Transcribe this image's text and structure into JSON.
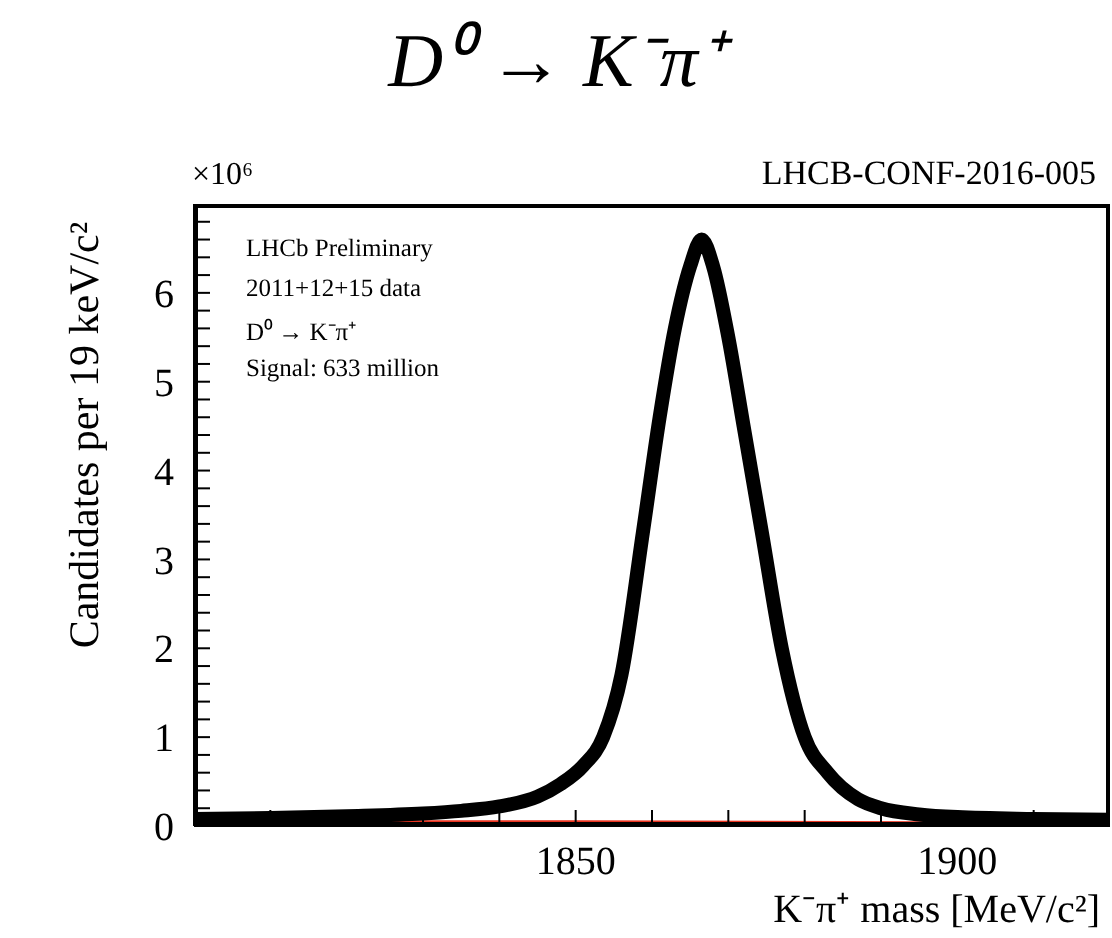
{
  "chart_data": {
    "type": "line",
    "title": "D⁰ → K⁻π⁺",
    "xlabel": "K⁻π⁺ mass [MeV/c²]",
    "ylabel": "Candidates per 19 keV/c²",
    "annotations": [
      "LHCB-CONF-2016-005",
      "×10⁶",
      "LHCb Preliminary",
      "2011+12+15 data",
      "D⁰ → K⁻π⁺",
      "Signal: 633 million"
    ],
    "xlim": [
      1800,
      1920
    ],
    "xticks": [
      {
        "value": 1810,
        "label": null
      },
      {
        "value": 1820,
        "label": null
      },
      {
        "value": 1830,
        "label": null
      },
      {
        "value": 1840,
        "label": null
      },
      1850,
      {
        "value": 1860,
        "label": null
      },
      {
        "value": 1870,
        "label": null
      },
      {
        "value": 1880,
        "label": null
      },
      {
        "value": 1890,
        "label": null
      },
      1900,
      {
        "value": 1910,
        "label": null
      }
    ],
    "ylim": [
      0,
      7
    ],
    "yticks": [
      0,
      {
        "value": 0.2,
        "label": null
      },
      {
        "value": 0.4,
        "label": null
      },
      {
        "value": 0.6,
        "label": null
      },
      {
        "value": 0.8,
        "label": null
      },
      1,
      {
        "value": 1.2,
        "label": null
      },
      {
        "value": 1.4,
        "label": null
      },
      {
        "value": 1.6,
        "label": null
      },
      {
        "value": 1.8,
        "label": null
      },
      2,
      {
        "value": 2.2,
        "label": null
      },
      {
        "value": 2.4,
        "label": null
      },
      {
        "value": 2.6,
        "label": null
      },
      {
        "value": 2.8,
        "label": null
      },
      3,
      {
        "value": 3.2,
        "label": null
      },
      {
        "value": 3.4,
        "label": null
      },
      {
        "value": 3.6,
        "label": null
      },
      {
        "value": 3.8,
        "label": null
      },
      4,
      {
        "value": 4.2,
        "label": null
      },
      {
        "value": 4.4,
        "label": null
      },
      {
        "value": 4.6,
        "label": null
      },
      {
        "value": 4.8,
        "label": null
      },
      5,
      {
        "value": 5.2,
        "label": null
      },
      {
        "value": 5.4,
        "label": null
      },
      {
        "value": 5.6,
        "label": null
      },
      {
        "value": 5.8,
        "label": null
      },
      6,
      {
        "value": 6.2,
        "label": null
      },
      {
        "value": 6.4,
        "label": null
      },
      {
        "value": 6.6,
        "label": null
      },
      {
        "value": 6.8,
        "label": null
      }
    ],
    "marker": "none",
    "line_style": "solid",
    "series": [
      {
        "color": "#e8321e",
        "x": [
          1800,
          1850,
          1896
        ],
        "values": [
          0.03,
          0.03,
          0.02
        ]
      },
      {
        "color": "#000000",
        "x": [
          1800,
          1810,
          1820,
          1830,
          1835,
          1840,
          1845,
          1848,
          1851,
          1853.6,
          1856,
          1858.8,
          1861,
          1863,
          1865,
          1866.5,
          1868,
          1870,
          1872,
          1874.4,
          1877,
          1880,
          1883,
          1887,
          1890,
          1895,
          1900,
          1910,
          1920
        ],
        "values": [
          0.08,
          0.09,
          0.11,
          0.14,
          0.17,
          0.22,
          0.33,
          0.47,
          0.68,
          1.0,
          1.7,
          3.3,
          4.6,
          5.6,
          6.3,
          6.6,
          6.3,
          5.5,
          4.5,
          3.3,
          2.0,
          1.0,
          0.6,
          0.3,
          0.2,
          0.13,
          0.1,
          0.08,
          0.07
        ]
      }
    ]
  }
}
